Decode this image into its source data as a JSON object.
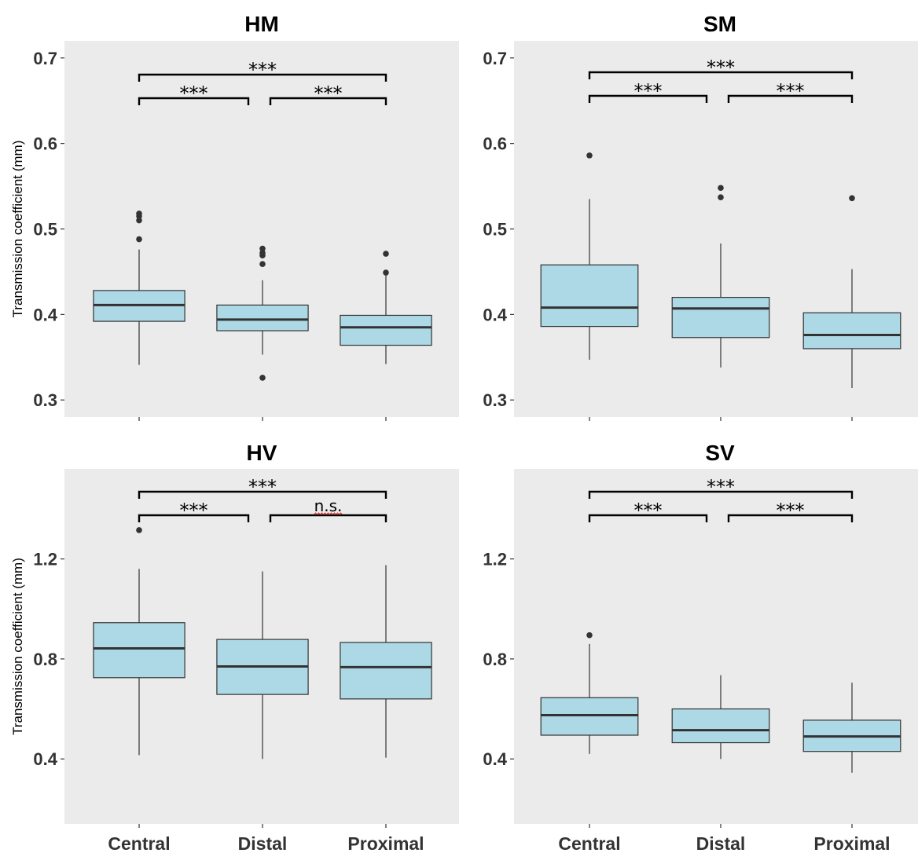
{
  "chart_data": [
    {
      "type": "box",
      "title": "HM",
      "ylabel": "Transmission coefficient (mm)",
      "categories": [
        "Central",
        "Distal",
        "Proximal"
      ],
      "yticks": [
        "0.3",
        "0.4",
        "0.5",
        "0.6",
        "0.7"
      ],
      "ylim": [
        0.28,
        0.72
      ],
      "boxes": [
        {
          "whisker_low": 0.341,
          "q1": 0.392,
          "median": 0.411,
          "q3": 0.428,
          "whisker_high": 0.476,
          "outliers": [
            0.488,
            0.51,
            0.515,
            0.518
          ]
        },
        {
          "whisker_low": 0.353,
          "q1": 0.381,
          "median": 0.394,
          "q3": 0.411,
          "whisker_high": 0.44,
          "outliers": [
            0.326,
            0.459,
            0.469,
            0.472,
            0.477
          ]
        },
        {
          "whisker_low": 0.342,
          "q1": 0.364,
          "median": 0.385,
          "q3": 0.399,
          "whisker_high": 0.447,
          "outliers": [
            0.449,
            0.471
          ]
        }
      ],
      "comparisons": [
        {
          "pair": [
            "Central",
            "Distal"
          ],
          "label": "***"
        },
        {
          "pair": [
            "Distal",
            "Proximal"
          ],
          "label": "***"
        },
        {
          "pair": [
            "Central",
            "Proximal"
          ],
          "label": "***"
        }
      ],
      "grid": false
    },
    {
      "type": "box",
      "title": "SM",
      "ylabel": "",
      "categories": [
        "Central",
        "Distal",
        "Proximal"
      ],
      "yticks": [
        "0.3",
        "0.4",
        "0.5",
        "0.6",
        "0.7"
      ],
      "ylim": [
        0.28,
        0.72
      ],
      "boxes": [
        {
          "whisker_low": 0.347,
          "q1": 0.386,
          "median": 0.408,
          "q3": 0.458,
          "whisker_high": 0.535,
          "outliers": [
            0.586
          ]
        },
        {
          "whisker_low": 0.338,
          "q1": 0.373,
          "median": 0.407,
          "q3": 0.42,
          "whisker_high": 0.483,
          "outliers": [
            0.537,
            0.548
          ]
        },
        {
          "whisker_low": 0.314,
          "q1": 0.36,
          "median": 0.376,
          "q3": 0.402,
          "whisker_high": 0.453,
          "outliers": [
            0.536
          ]
        }
      ],
      "comparisons": [
        {
          "pair": [
            "Central",
            "Distal"
          ],
          "label": "***"
        },
        {
          "pair": [
            "Distal",
            "Proximal"
          ],
          "label": "***"
        },
        {
          "pair": [
            "Central",
            "Proximal"
          ],
          "label": "***"
        }
      ],
      "grid": false
    },
    {
      "type": "box",
      "title": "HV",
      "ylabel": "Transmission coefficient (mm)",
      "categories": [
        "Central",
        "Distal",
        "Proximal"
      ],
      "yticks": [
        "0.4",
        "0.8",
        "1.2"
      ],
      "ylim": [
        0.14,
        1.56
      ],
      "boxes": [
        {
          "whisker_low": 0.415,
          "q1": 0.725,
          "median": 0.842,
          "q3": 0.945,
          "whisker_high": 1.16,
          "outliers": [
            1.315
          ]
        },
        {
          "whisker_low": 0.4,
          "q1": 0.658,
          "median": 0.77,
          "q3": 0.878,
          "whisker_high": 1.15,
          "outliers": []
        },
        {
          "whisker_low": 0.405,
          "q1": 0.64,
          "median": 0.767,
          "q3": 0.866,
          "whisker_high": 1.175,
          "outliers": []
        }
      ],
      "comparisons": [
        {
          "pair": [
            "Central",
            "Distal"
          ],
          "label": "***"
        },
        {
          "pair": [
            "Distal",
            "Proximal"
          ],
          "label": "n.s."
        },
        {
          "pair": [
            "Central",
            "Proximal"
          ],
          "label": "***"
        }
      ],
      "grid": false
    },
    {
      "type": "box",
      "title": "SV",
      "ylabel": "",
      "categories": [
        "Central",
        "Distal",
        "Proximal"
      ],
      "yticks": [
        "0.4",
        "0.8",
        "1.2"
      ],
      "ylim": [
        0.14,
        1.56
      ],
      "boxes": [
        {
          "whisker_low": 0.42,
          "q1": 0.495,
          "median": 0.575,
          "q3": 0.645,
          "whisker_high": 0.86,
          "outliers": [
            0.895
          ]
        },
        {
          "whisker_low": 0.4,
          "q1": 0.465,
          "median": 0.515,
          "q3": 0.6,
          "whisker_high": 0.735,
          "outliers": []
        },
        {
          "whisker_low": 0.345,
          "q1": 0.43,
          "median": 0.49,
          "q3": 0.555,
          "whisker_high": 0.705,
          "outliers": []
        }
      ],
      "comparisons": [
        {
          "pair": [
            "Central",
            "Distal"
          ],
          "label": "***"
        },
        {
          "pair": [
            "Distal",
            "Proximal"
          ],
          "label": "***"
        },
        {
          "pair": [
            "Central",
            "Proximal"
          ],
          "label": "***"
        }
      ],
      "grid": false
    }
  ],
  "colors": {
    "panel_background": "#ebebeb",
    "box_fill": "#add8e6",
    "box_line": "#333333",
    "point": "#333333",
    "bracket": "#000000"
  }
}
